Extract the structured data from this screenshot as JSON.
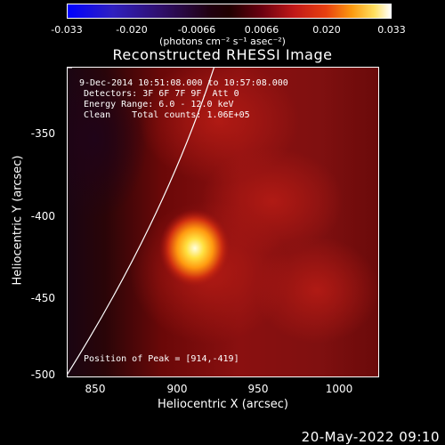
{
  "colorbar": {
    "ticks": [
      "-0.033",
      "-0.020",
      "-0.0066",
      "0.0066",
      "0.020",
      "0.033"
    ],
    "unit_label": "(photons cm⁻² s⁻¹ asec⁻²)"
  },
  "title": "Reconstructed RHESSI Image",
  "info": {
    "time_range": "9-Dec-2014 10:51:08.000 to 10:57:08.000",
    "detectors": "Detectors: 3F 6F 7F 9F, Att 0",
    "energy": "Energy Range: 6.0 - 12.0 keV",
    "clean": "Clean    Total counts: 1.06E+05",
    "peak": "Position of Peak = [914,-419]"
  },
  "axes": {
    "xlabel": "Heliocentric X (arcsec)",
    "ylabel": "Heliocentric Y (arcsec)",
    "xticks": [
      "850",
      "900",
      "950",
      "1000"
    ],
    "yticks": [
      "-350",
      "-400",
      "-450",
      "-500"
    ]
  },
  "footer": {
    "date": "20-May-2022 09:10"
  }
}
